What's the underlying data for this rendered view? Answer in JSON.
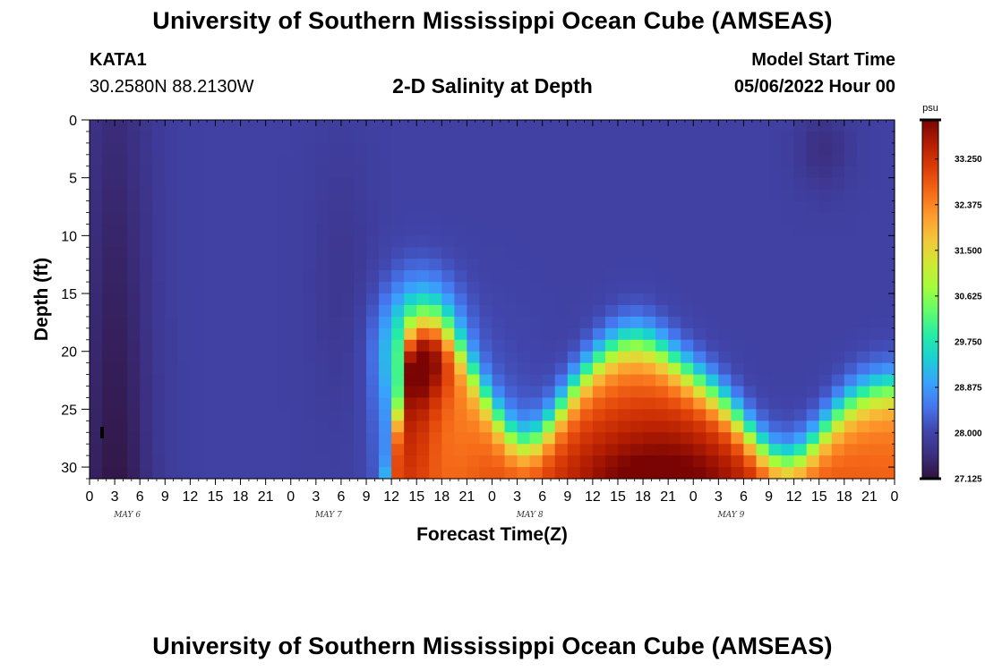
{
  "header": {
    "title": "University of Southern Mississippi Ocean Cube (AMSEAS)",
    "station_id": "KATA1",
    "station_coords": "30.2580N  88.2130W",
    "subtitle": "2-D Salinity at Depth",
    "model_start_label": "Model Start Time",
    "model_start_value": "05/06/2022 Hour 00"
  },
  "footer": {
    "title": "University of Southern Mississippi Ocean Cube (AMSEAS)"
  },
  "chart_data": {
    "type": "heatmap",
    "title": "2-D Salinity at Depth",
    "xlabel": "Forecast Time(Z)",
    "ylabel": "Depth (ft)",
    "x_range_hours": [
      0,
      96
    ],
    "x_ticks": [
      "0",
      "3",
      "6",
      "9",
      "12",
      "15",
      "18",
      "21",
      "0",
      "3",
      "6",
      "9",
      "12",
      "15",
      "18",
      "21",
      "0",
      "3",
      "6",
      "9",
      "12",
      "15",
      "18",
      "21",
      "0",
      "3",
      "6",
      "9",
      "12",
      "15",
      "18",
      "21",
      "0"
    ],
    "date_labels": [
      "MAY 6",
      "MAY 7",
      "MAY 8",
      "MAY 9"
    ],
    "y_range": [
      0,
      31
    ],
    "y_reversed": true,
    "y_ticks": [
      0,
      5,
      10,
      15,
      20,
      25,
      30
    ],
    "colorbar": {
      "unit": "psu",
      "min": 27.125,
      "max": 34.0,
      "ticks": [
        "33.250",
        "32.375",
        "31.500",
        "30.625",
        "29.750",
        "28.875",
        "28.000",
        "27.125"
      ],
      "colors": [
        "#30123b",
        "#3b2f80",
        "#4145ab",
        "#4675ed",
        "#39a2fc",
        "#1bcfd4",
        "#24eca6",
        "#61fc6c",
        "#a4fc3b",
        "#d1e834",
        "#f3c63a",
        "#fe9b2d",
        "#f56918",
        "#dc3d07",
        "#b41e02",
        "#7a0403"
      ]
    },
    "cells_x_step_hours": 1.5,
    "cells_y_step_ft": 1,
    "salinity_field_description": "Fresher water (~27.1-27.5 psu) near Hour 0-6 of May 6 through full depth; ~27.9 psu in upper layer; saline intrusion (~31-33.5 psu) below ~18 ft from May 7 15Z onward, peak ~34 psu near May 8 20Z at 30 ft."
  }
}
